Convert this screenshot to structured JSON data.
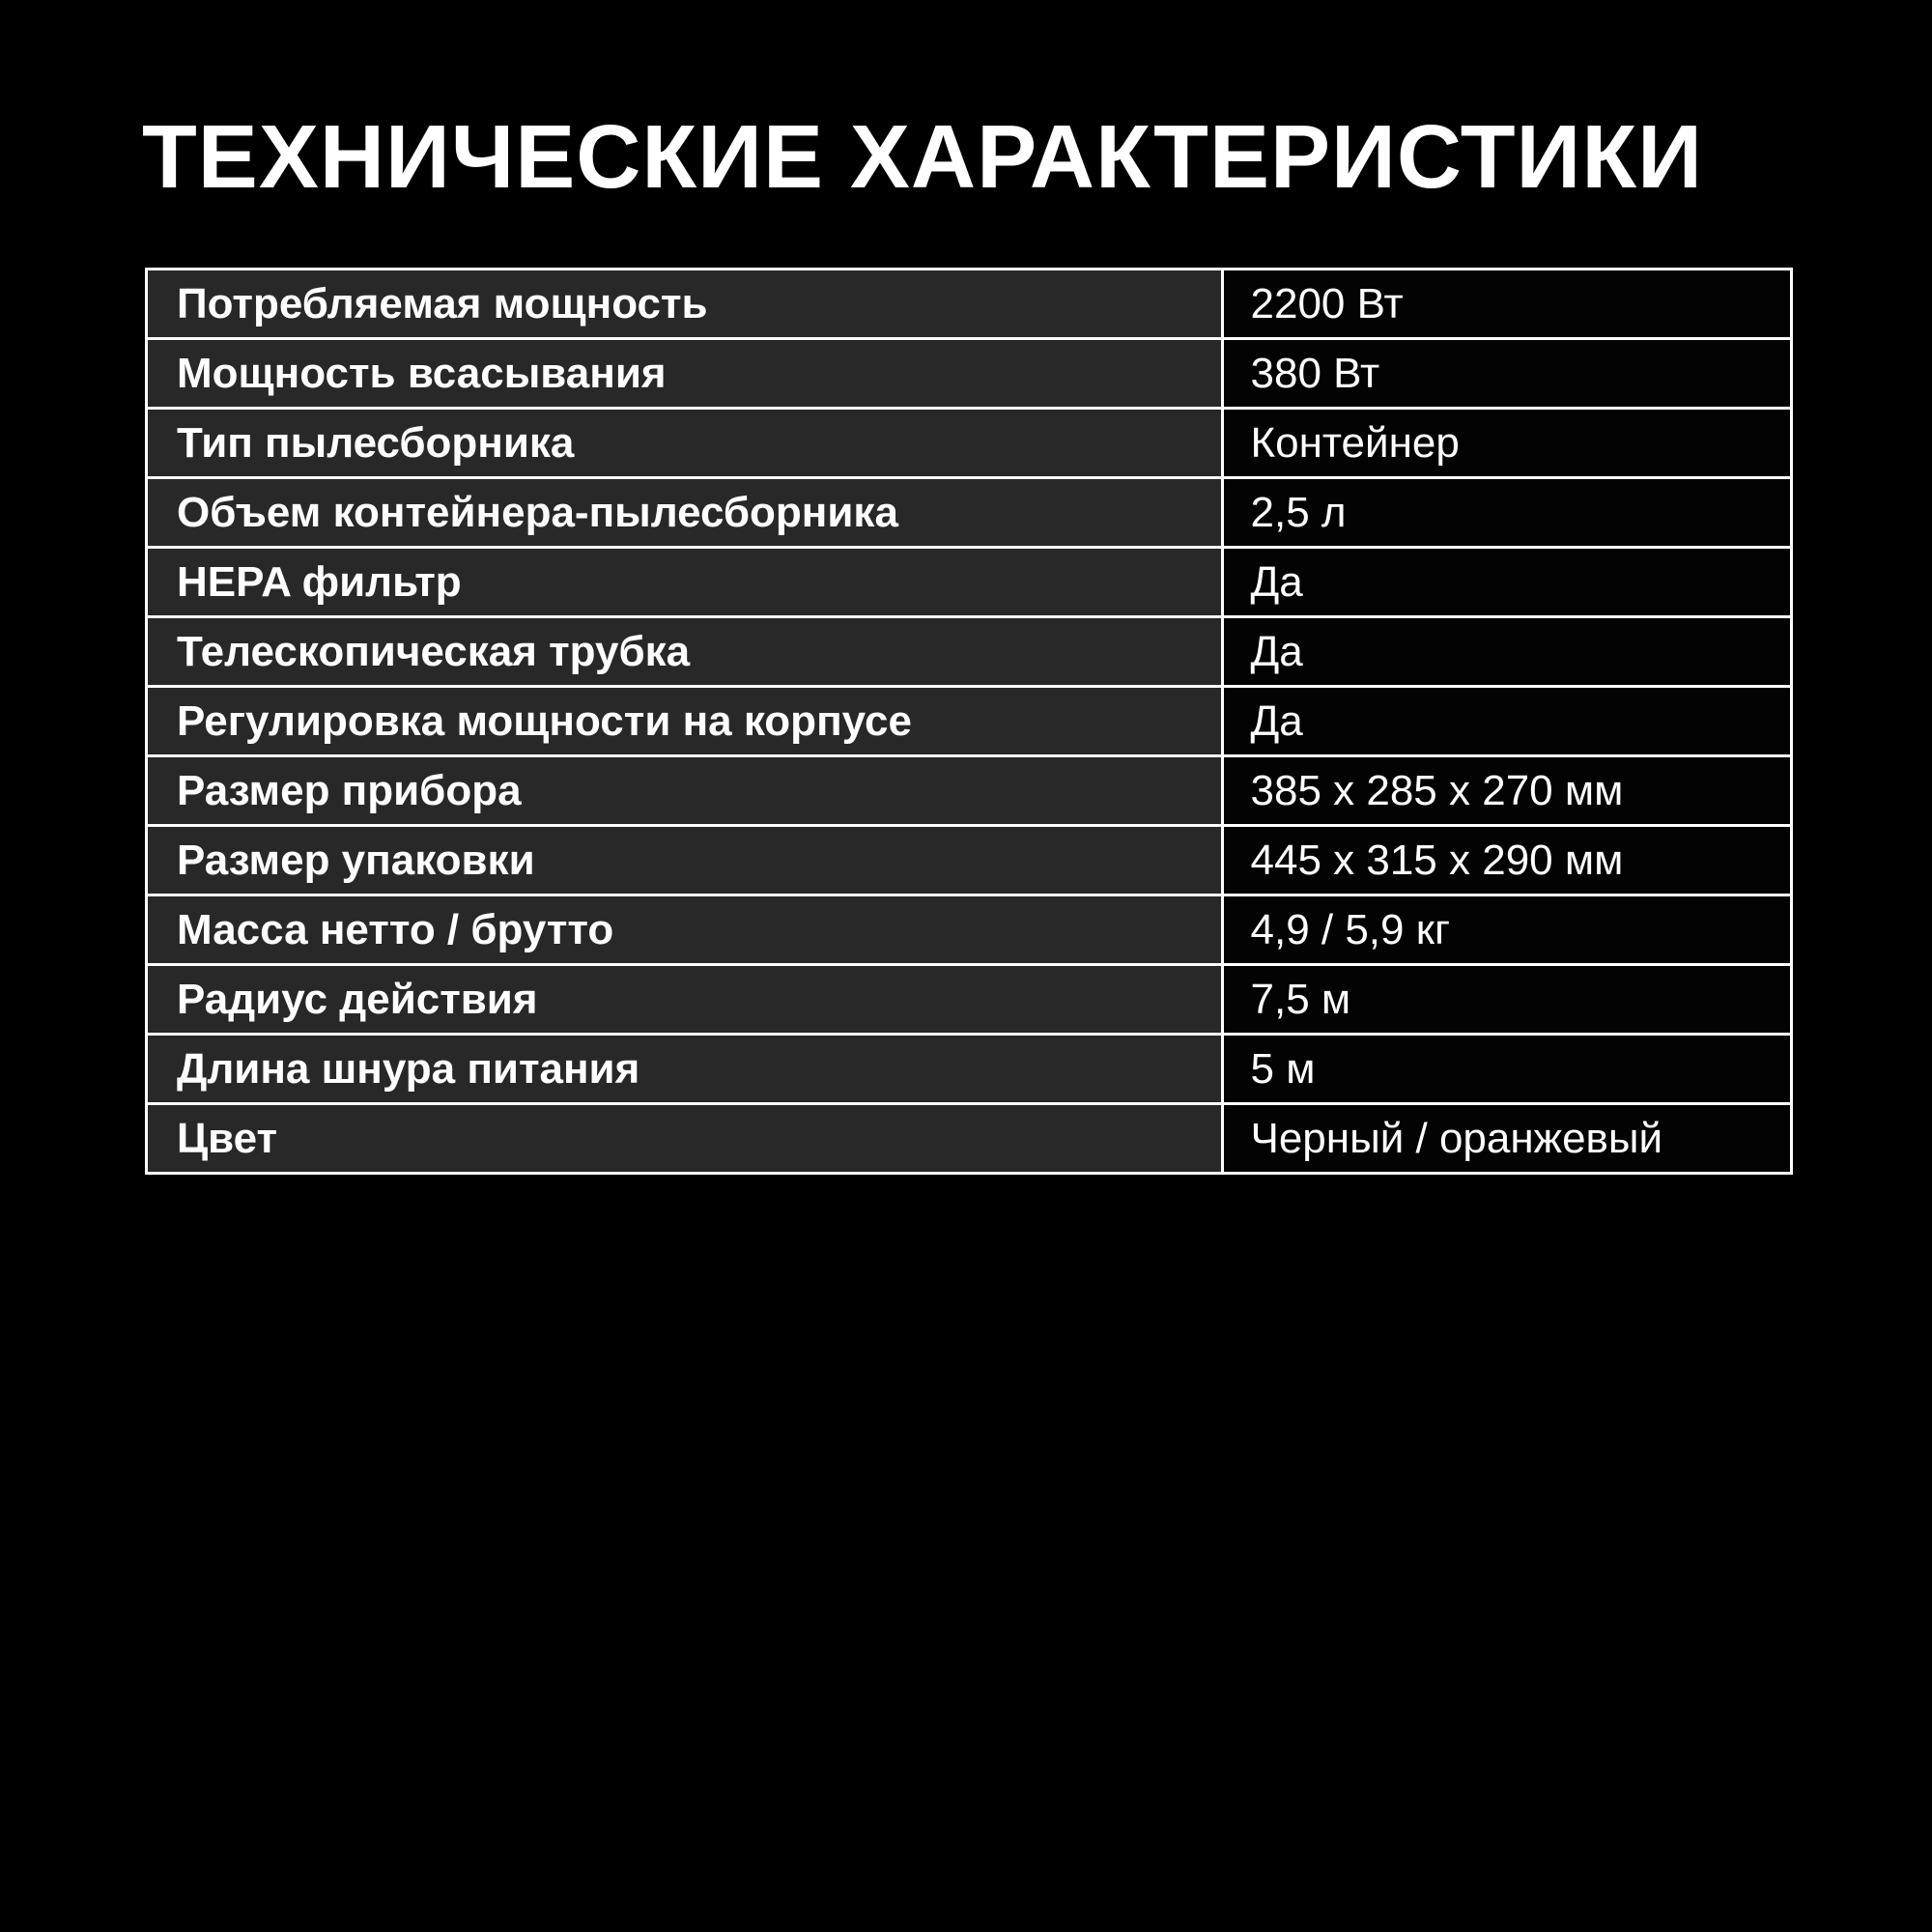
{
  "page": {
    "title": "ТЕХНИЧЕСКИЕ ХАРАКТЕРИСТИКИ",
    "background_color": "#000000",
    "text_color": "#ffffff"
  },
  "table": {
    "border_color": "#ffffff",
    "label_cell_bg": "#282828",
    "value_cell_bg": "#030303",
    "rows": [
      {
        "label": "Потребляемая мощность",
        "value": "2200 Вт"
      },
      {
        "label": "Мощность всасывания",
        "value": "380 Вт"
      },
      {
        "label": "Тип пылесборника",
        "value": "Контейнер"
      },
      {
        "label": "Объем контейнера-пылесборника",
        "value": "2,5 л"
      },
      {
        "label": "HEPA фильтр",
        "value": "Да"
      },
      {
        "label": "Телескопическая трубка",
        "value": "Да"
      },
      {
        "label": "Регулировка мощности на корпусе",
        "value": "Да"
      },
      {
        "label": "Размер прибора",
        "value": "385 x 285 x 270 мм"
      },
      {
        "label": "Размер упаковки",
        "value": "445 x 315 x 290 мм"
      },
      {
        "label": "Масса нетто / брутто",
        "value": "4,9 / 5,9 кг"
      },
      {
        "label": "Радиус действия",
        "value": "7,5 м"
      },
      {
        "label": "Длина шнура питания",
        "value": "5 м"
      },
      {
        "label": "Цвет",
        "value": "Черный / оранжевый"
      }
    ]
  }
}
